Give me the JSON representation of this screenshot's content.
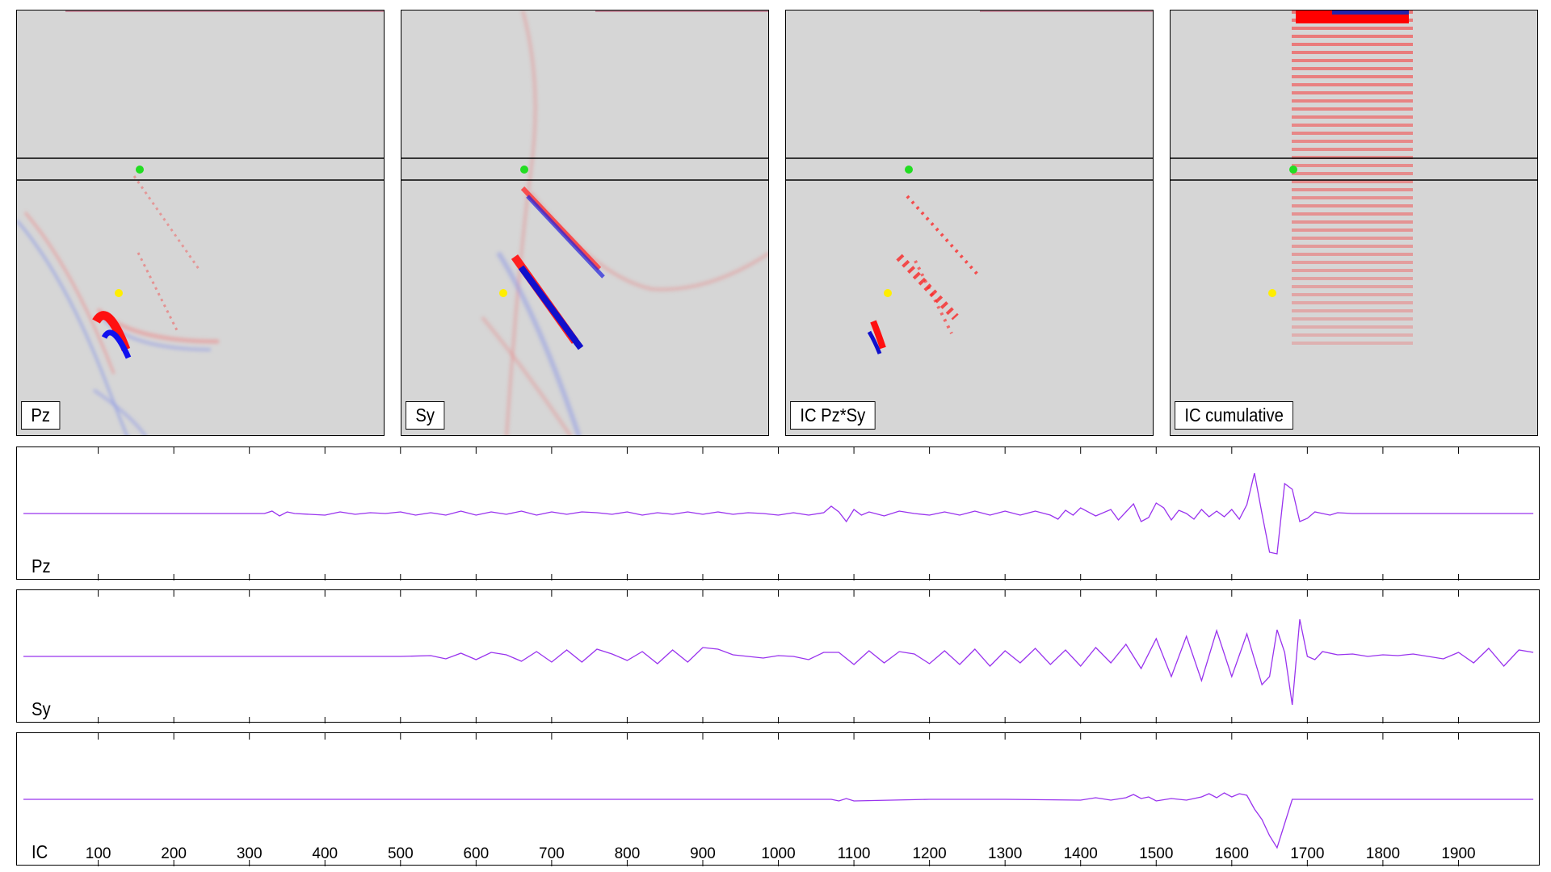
{
  "colors": {
    "background": "#d6d6d6",
    "positive": "#ff0000",
    "negative": "#0000ff",
    "trace": "#9933ee",
    "receiver_green": "#22dd22",
    "receiver_yellow": "#ffee00"
  },
  "panels": [
    {
      "id": "pz",
      "label": "Pz",
      "icon": "wavefield-image"
    },
    {
      "id": "sy",
      "label": "Sy",
      "icon": "wavefield-image"
    },
    {
      "id": "ic",
      "label": "IC Pz*Sy",
      "icon": "wavefield-image"
    },
    {
      "id": "cum",
      "label": "IC cumulative",
      "icon": "wavefield-image"
    }
  ],
  "chart_data": [
    {
      "type": "line",
      "ylabel": "Pz",
      "xlim": [
        1,
        2000
      ],
      "ylim": [
        -1,
        1
      ],
      "series": [
        {
          "x": [
            1,
            200,
            320,
            330,
            340,
            350,
            360,
            400,
            420,
            440,
            460,
            480,
            500,
            520,
            540,
            560,
            580,
            600,
            620,
            640,
            660,
            680,
            700,
            720,
            740,
            760,
            780,
            800,
            820,
            840,
            860,
            880,
            900,
            920,
            940,
            960,
            980,
            1000,
            1020,
            1040,
            1060,
            1070,
            1080,
            1090,
            1100,
            1110,
            1120,
            1140,
            1160,
            1180,
            1200,
            1220,
            1240,
            1260,
            1280,
            1300,
            1320,
            1340,
            1360,
            1370,
            1380,
            1390,
            1400,
            1420,
            1440,
            1450,
            1460,
            1470,
            1480,
            1490,
            1500,
            1510,
            1520,
            1530,
            1540,
            1550,
            1560,
            1570,
            1580,
            1590,
            1600,
            1610,
            1620,
            1630,
            1640,
            1650,
            1660,
            1670,
            1680,
            1690,
            1700,
            1710,
            1720,
            1730,
            1740,
            1760,
            1800,
            1850,
            1900,
            1999
          ],
          "y": [
            0,
            0,
            0,
            0.03,
            -0.03,
            0.02,
            0,
            -0.02,
            0.02,
            -0.01,
            0.01,
            0,
            0.02,
            -0.02,
            0.01,
            -0.02,
            0.03,
            -0.02,
            0.02,
            -0.01,
            0.03,
            -0.02,
            0.02,
            -0.01,
            0.02,
            0.01,
            -0.01,
            0.02,
            -0.02,
            0.01,
            -0.01,
            0.02,
            -0.01,
            0.02,
            -0.01,
            0.01,
            0,
            -0.02,
            0.01,
            -0.02,
            0.01,
            0.09,
            0.02,
            -0.1,
            0.05,
            -0.02,
            0.02,
            -0.03,
            0.03,
            0,
            -0.02,
            0.02,
            -0.02,
            0.03,
            -0.02,
            0.03,
            -0.02,
            0.03,
            -0.02,
            -0.07,
            0.04,
            -0.02,
            0.07,
            -0.03,
            0.05,
            -0.08,
            0.02,
            0.12,
            -0.1,
            -0.05,
            0.13,
            0.07,
            -0.08,
            0.04,
            0.0,
            -0.07,
            0.05,
            -0.04,
            0.03,
            -0.04,
            0.05,
            -0.07,
            0.11,
            0.5,
            0.0,
            -0.48,
            -0.5,
            0.37,
            0.3,
            -0.1,
            -0.06,
            0.02,
            0.0,
            -0.02,
            0.01,
            0,
            0,
            0,
            0,
            0
          ]
        }
      ]
    },
    {
      "type": "line",
      "ylabel": "Sy",
      "xlim": [
        1,
        2000
      ],
      "ylim": [
        -1,
        1
      ],
      "series": [
        {
          "x": [
            1,
            500,
            540,
            560,
            580,
            600,
            620,
            640,
            660,
            680,
            700,
            720,
            740,
            760,
            780,
            800,
            820,
            840,
            860,
            880,
            900,
            920,
            940,
            960,
            980,
            1000,
            1020,
            1040,
            1060,
            1080,
            1100,
            1120,
            1140,
            1160,
            1180,
            1200,
            1220,
            1240,
            1260,
            1280,
            1300,
            1320,
            1340,
            1360,
            1380,
            1400,
            1420,
            1440,
            1460,
            1480,
            1500,
            1520,
            1540,
            1560,
            1580,
            1600,
            1620,
            1640,
            1650,
            1660,
            1670,
            1680,
            1690,
            1700,
            1710,
            1720,
            1740,
            1760,
            1780,
            1800,
            1820,
            1840,
            1860,
            1880,
            1900,
            1920,
            1940,
            1960,
            1980,
            1999
          ],
          "y": [
            0,
            0,
            0.01,
            -0.03,
            0.04,
            -0.04,
            0.05,
            0.02,
            -0.06,
            0.06,
            -0.07,
            0.08,
            -0.07,
            0.09,
            0.03,
            -0.05,
            0.06,
            -0.09,
            0.08,
            -0.07,
            0.11,
            0.09,
            0.02,
            0.0,
            -0.02,
            0.01,
            0.0,
            -0.04,
            0.05,
            0.05,
            -0.1,
            0.07,
            -0.08,
            0.06,
            0.03,
            -0.09,
            0.07,
            -0.1,
            0.09,
            -0.12,
            0.07,
            -0.08,
            0.1,
            -0.1,
            0.08,
            -0.12,
            0.11,
            -0.08,
            0.15,
            -0.15,
            0.22,
            -0.25,
            0.25,
            -0.3,
            0.32,
            -0.25,
            0.28,
            -0.35,
            -0.25,
            0.33,
            0.05,
            -0.6,
            0.46,
            0.0,
            -0.04,
            0.06,
            0.02,
            0.03,
            0.0,
            0.02,
            0.01,
            0.03,
            0.0,
            -0.03,
            0.05,
            -0.08,
            0.1,
            -0.12,
            0.08,
            0.05
          ]
        }
      ]
    },
    {
      "type": "line",
      "ylabel": "IC",
      "xlim": [
        1,
        2000
      ],
      "ylim": [
        -1,
        1
      ],
      "xticks": [
        100,
        200,
        300,
        400,
        500,
        600,
        700,
        800,
        900,
        1000,
        1100,
        1200,
        1300,
        1400,
        1500,
        1600,
        1700,
        1800,
        1900
      ],
      "series": [
        {
          "x": [
            1,
            1070,
            1080,
            1090,
            1100,
            1200,
            1300,
            1400,
            1420,
            1440,
            1460,
            1470,
            1480,
            1490,
            1500,
            1520,
            1540,
            1560,
            1570,
            1580,
            1590,
            1600,
            1610,
            1620,
            1630,
            1640,
            1650,
            1660,
            1670,
            1680,
            1690,
            1700,
            1720,
            1800,
            1999
          ],
          "y": [
            0,
            0,
            -0.02,
            0.01,
            -0.02,
            0,
            0,
            -0.01,
            0.02,
            -0.01,
            0.02,
            0.06,
            0.01,
            0.03,
            -0.02,
            0.01,
            -0.01,
            0.03,
            0.07,
            0.02,
            0.08,
            0.03,
            0.07,
            0.05,
            -0.12,
            -0.25,
            -0.45,
            -0.6,
            -0.3,
            0.0,
            0.0,
            0.0,
            0.0,
            0.0,
            0.0
          ]
        }
      ]
    }
  ]
}
